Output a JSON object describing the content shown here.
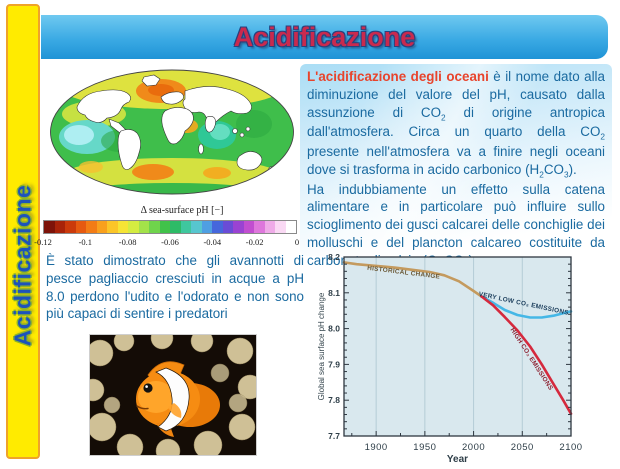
{
  "slide": {
    "sidebar_label": "Acidificazione",
    "title": "Acidificazione"
  },
  "colors": {
    "sidebar_yellow": "#ffeb00",
    "sidebar_border_orange": "#efa32a",
    "sidebar_text_blue": "#1d53bb",
    "header_blue_top": "#6fc9f0",
    "header_blue_bottom": "#1f93d6",
    "title_red": "#c92a4e",
    "body_text_blue": "#1a6aa0",
    "lead_red": "#e8442c"
  },
  "map_figure": {
    "caption": "Δ sea-surface pH [−]",
    "colorbar_ticks": [
      "-0.12",
      "-0.1",
      "-0.08",
      "-0.06",
      "-0.04",
      "-0.02",
      "0"
    ],
    "colorbar_colors": [
      "#7d1309",
      "#a82309",
      "#cb3a0b",
      "#e65a10",
      "#f37c15",
      "#f9a01d",
      "#fbc528",
      "#f6e435",
      "#d4ec41",
      "#a3e24a",
      "#6fd44c",
      "#41c24a",
      "#2dbb67",
      "#3fc79e",
      "#57c6cf",
      "#4f9fe2",
      "#4667dc",
      "#6a4cd6",
      "#9a43d2",
      "#c14ed0",
      "#de77dc",
      "#efabe8",
      "#fad9f4",
      "#ffffff"
    ]
  },
  "paragraphs": {
    "main": [
      {
        "text": "L'acidificazione degli oceani",
        "style": "lead"
      },
      {
        "text": " è il nome dato alla diminuzione del valore del pH, causato dalla assunzione di CO"
      },
      {
        "text": "2",
        "style": "sub"
      },
      {
        "text": " di origine antropica dall'atmosfera. Circa un quarto della CO"
      },
      {
        "text": "2",
        "style": "sub"
      },
      {
        "text": " presente nell'atmosfera va a finire negli oceani dove si trasforma in acido carbonico (H"
      },
      {
        "text": "2",
        "style": "sub"
      },
      {
        "text": "CO"
      },
      {
        "text": "3",
        "style": "sub"
      },
      {
        "text": ")."
      },
      {
        "text": "",
        "style": "br"
      },
      {
        "text": "Ha indubbiamente un effetto sulla catena alimentare e in particolare può influire sullo scioglimento dei gusci calcarei delle conchiglie dei molluschi e del plancton calcareo costituite da carbonato di calcio (CaCO"
      },
      {
        "text": "3",
        "style": "sub"
      },
      {
        "text": ")."
      }
    ],
    "clownfish": "È stato dimostrato che gli avannotti di pesce pagliaccio cresciuti in acque a pH 8.0 perdono l'udito e l'odorato e non sono più capaci di sentire i predatori"
  },
  "chart_data": {
    "type": "line",
    "xlabel": "Year",
    "ylabel": "Global sea surface pH change",
    "xlim": [
      1867,
      2100
    ],
    "ylim": [
      7.7,
      8.2
    ],
    "x_ticks": [
      1900,
      1950,
      2000,
      2050,
      2100
    ],
    "y_ticks": [
      7.7,
      7.8,
      7.9,
      8.0,
      8.1,
      8.2
    ],
    "grid": "vertical",
    "plot_bg": "#d9e8ee",
    "series": [
      {
        "name": "HISTORICAL CHANGE",
        "color": "#c49a5e",
        "x": [
          1867,
          1880,
          1900,
          1920,
          1940,
          1955,
          1970,
          1985,
          2000,
          2008
        ],
        "y": [
          8.185,
          8.18,
          8.175,
          8.17,
          8.163,
          8.158,
          8.149,
          8.132,
          8.105,
          8.09
        ]
      },
      {
        "name": "VERY LOW CO₂ EMISSIONS",
        "color": "#45b7e6",
        "x": [
          2008,
          2020,
          2032,
          2045,
          2058,
          2070,
          2082,
          2092,
          2100
        ],
        "y": [
          8.09,
          8.072,
          8.052,
          8.038,
          8.031,
          8.031,
          8.036,
          8.043,
          8.048
        ]
      },
      {
        "name": "HIGH CO₂ EMISSIONS",
        "color": "#d5293d",
        "x": [
          2008,
          2020,
          2032,
          2045,
          2058,
          2070,
          2082,
          2092,
          2100
        ],
        "y": [
          8.09,
          8.065,
          8.032,
          7.995,
          7.95,
          7.9,
          7.845,
          7.8,
          7.762
        ]
      }
    ],
    "annotations": [
      {
        "text": "HISTORICAL CHANGE",
        "year": 1928,
        "ph": 8.152,
        "rotate": 7,
        "color": "#6b5a38"
      },
      {
        "text": "VERY LOW CO₂ EMISSIONS",
        "year": 2051,
        "ph": 8.065,
        "rotate": 12,
        "color": "#1c3e5c"
      },
      {
        "text": "HIGH CO₂ EMISSIONS",
        "year": 2058,
        "ph": 7.912,
        "rotate": 57,
        "color": "#8c2030"
      }
    ]
  }
}
